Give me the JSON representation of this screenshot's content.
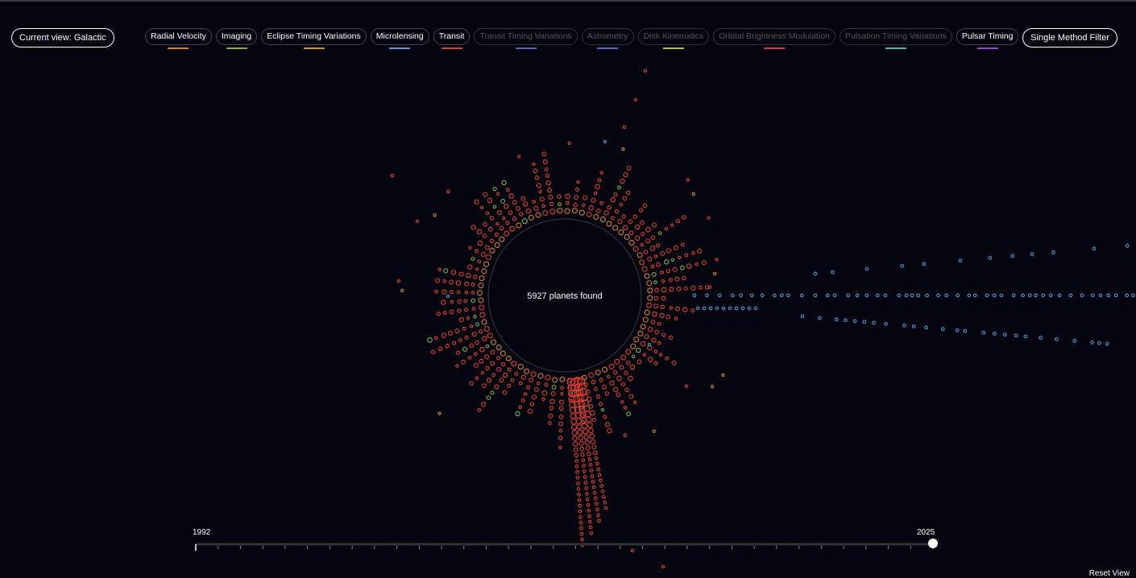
{
  "view_button": "Current view: Galactic",
  "methods": [
    {
      "label": "Radial Velocity",
      "color": "#d9822b",
      "active": true
    },
    {
      "label": "Imaging",
      "color": "#7cb342",
      "active": true
    },
    {
      "label": "Eclipse Timing Variations",
      "color": "#d98c2b",
      "active": true
    },
    {
      "label": "Microlensing",
      "color": "#4a9fd8",
      "active": true
    },
    {
      "label": "Transit",
      "color": "#e0402f",
      "active": true
    },
    {
      "label": "Transit Timing Variations",
      "color": "#5b5fc7",
      "active": false
    },
    {
      "label": "Astrometry",
      "color": "#5560c8",
      "active": false
    },
    {
      "label": "Disk Kinematics",
      "color": "#b5c53a",
      "active": false
    },
    {
      "label": "Orbital Brightness Modulation",
      "color": "#e0344a",
      "active": false
    },
    {
      "label": "Pulsation Timing Variations",
      "color": "#3fbfa0",
      "active": false
    },
    {
      "label": "Pulsar Timing",
      "color": "#a040d0",
      "active": true
    }
  ],
  "filter_button": "Single Method Filter",
  "center_label": "5927 planets found",
  "timeline": {
    "start": "1992",
    "end": "2025"
  },
  "reset": "Reset View"
}
